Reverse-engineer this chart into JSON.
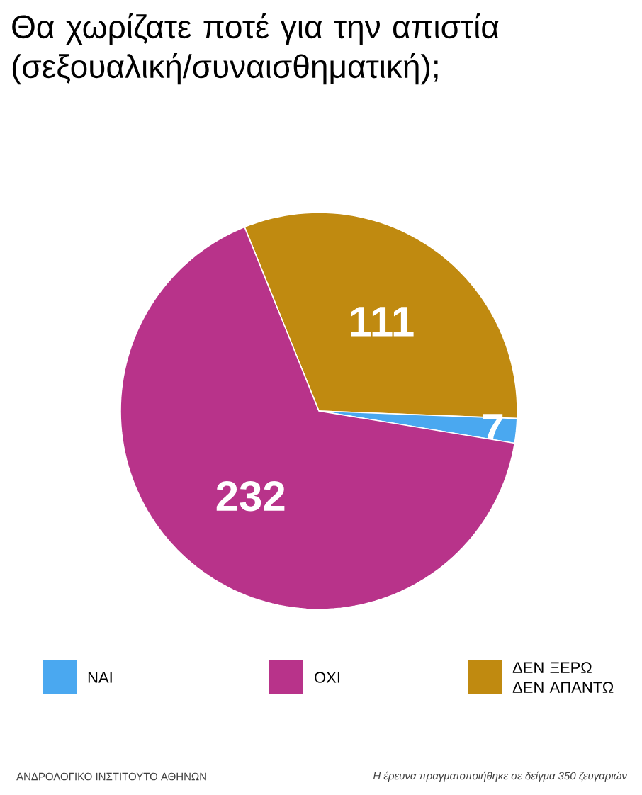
{
  "chart_data": {
    "type": "pie",
    "title": "Θα χωρίζατε ποτέ για την απιστία (σεξουαλική/συναισθηματική);",
    "categories": [
      "ΝΑΙ",
      "ΟΧΙ",
      "ΔΕΝ ΞΕΡΩ ΔΕΝ ΑΠΑΝΤΩ"
    ],
    "values": [
      7,
      232,
      111
    ],
    "colors": [
      "#4aa8f0",
      "#b8338a",
      "#c08a10"
    ],
    "data_labels": true,
    "legend": "bottom",
    "annotations": [
      "ΑΝΔΡΟΛΟΓΙΚΟ ΙΝΣΤΙΤΟΥΤΟ ΑΘΗΝΩΝ",
      "Η έρευνα πραγματοποιήθηκε σε δείγμα 350 ζευγαριών"
    ]
  }
}
